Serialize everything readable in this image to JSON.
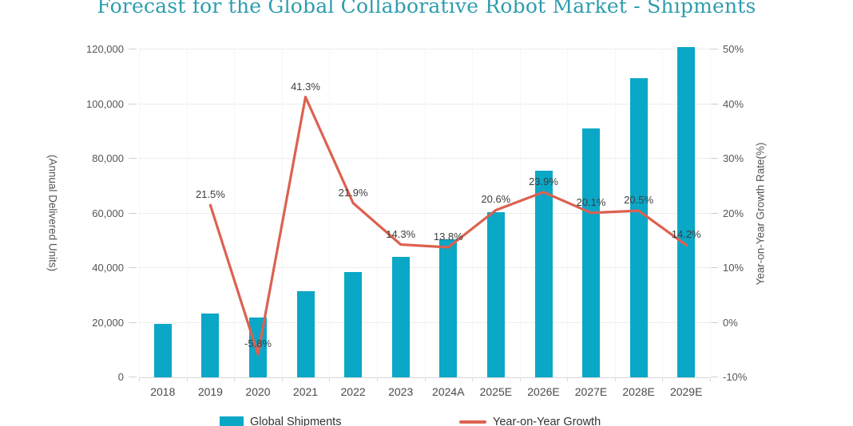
{
  "chart_data": {
    "type": "combo",
    "title": "Forecast for the Global Collaborative Robot Market - Shipments",
    "categories": [
      "2018",
      "2019",
      "2020",
      "2021",
      "2022",
      "2023",
      "2024A",
      "2025E",
      "2026E",
      "2027E",
      "2028E",
      "2029E"
    ],
    "series": [
      {
        "name": "Global Shipments",
        "type": "bar",
        "axis": "left",
        "values": [
          19500,
          23500,
          22000,
          31500,
          38500,
          44000,
          50500,
          60500,
          75500,
          91000,
          109500,
          121000
        ]
      },
      {
        "name": "Year-on-Year Growth",
        "type": "line",
        "axis": "right",
        "values": [
          null,
          21.5,
          -5.8,
          41.3,
          21.9,
          14.3,
          13.8,
          20.6,
          23.9,
          20.1,
          20.5,
          14.2
        ],
        "point_labels": [
          "",
          "21.5%",
          "-5.8%",
          "41.3%",
          "21.9%",
          "14.3%",
          "13.8%",
          "20.6%",
          "23.9%",
          "20.1%",
          "20.5%",
          "14.2%"
        ]
      }
    ],
    "y_left": {
      "label": "(Annual Delivered Units)",
      "min": 0,
      "max": 120000,
      "tick_step": 20000,
      "tick_labels": [
        "0",
        "20,000",
        "40,000",
        "60,000",
        "80,000",
        "100,000",
        "120,000"
      ]
    },
    "y_right": {
      "label": "Year-on-Year Growth Rate(%)",
      "min": -10,
      "max": 50,
      "tick_step": 10,
      "tick_labels": [
        "-10%",
        "0%",
        "10%",
        "20%",
        "30%",
        "40%",
        "50%"
      ]
    },
    "grid": true,
    "legend_position": "bottom",
    "colors": {
      "bar": "#0BA7C6",
      "line": "#DC6150",
      "title": "#2E9DAE",
      "grid": "#ECECEC",
      "axis_line": "#D9D9D9",
      "tick_text": "#555555",
      "data_label": "#3D3D3D"
    }
  }
}
